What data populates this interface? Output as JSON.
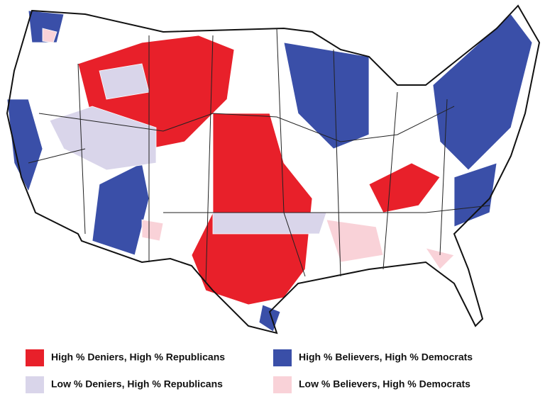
{
  "legend": {
    "items": [
      {
        "label": "High % Deniers, High % Republicans",
        "color": "#e8202a"
      },
      {
        "label": "High % Believers, High % Democrats",
        "color": "#3a4fa8"
      },
      {
        "label": "Low % Deniers, High % Republicans",
        "color": "#d9d5ea"
      },
      {
        "label": "Low % Believers, High % Democrats",
        "color": "#f9d2d8"
      }
    ]
  }
}
